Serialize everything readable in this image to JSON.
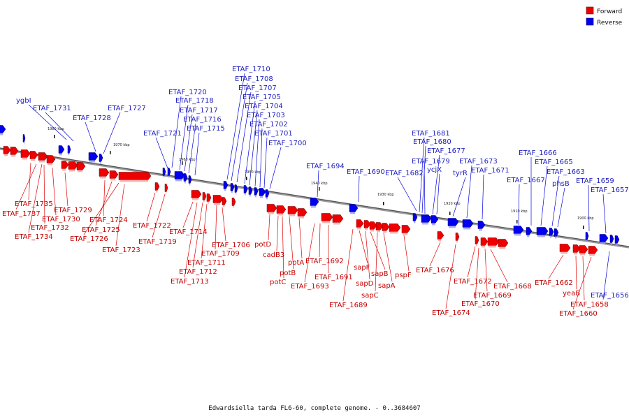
{
  "legend": {
    "forward_label": "Forward",
    "reverse_label": "Reverse",
    "forward_color": "#ee0000",
    "reverse_color": "#0000ee"
  },
  "caption": "Edwardsiella tarda FL6-60, complete genome. - 0..3684607",
  "ticks": [
    "1980 kbp",
    "1970 kbp",
    "1960 kbp",
    "1950 kbp",
    "1940 kbp",
    "1930 kbp",
    "1920 kbp",
    "1910 kbp",
    "1900 kbp"
  ],
  "reverse_genes": [
    "ygbI",
    "ETAF_1731",
    "ETAF_1728",
    "ETAF_1727",
    "ETAF_1721",
    "ETAF_1720",
    "ETAF_1718",
    "ETAF_1717",
    "ETAF_1716",
    "ETAF_1715",
    "ETAF_1710",
    "ETAF_1708",
    "ETAF_1707",
    "ETAF_1705",
    "ETAF_1704",
    "ETAF_1703",
    "ETAF_1702",
    "ETAF_1701",
    "ETAF_1700",
    "ETAF_1694",
    "ETAF_1690",
    "ETAF_1682",
    "ETAF_1681",
    "ETAF_1680",
    "ETAF_1679",
    "ETAF_1677",
    "ycjX",
    "tyrR",
    "ETAF_1673",
    "ETAF_1671",
    "ETAF_1667",
    "ETAF_1666",
    "ETAF_1665",
    "ETAF_1663",
    "phsB",
    "ETAF_1659",
    "ETAF_1657",
    "ETAF_1656"
  ],
  "forward_genes": [
    "ETAF_1735",
    "ETAF_1737",
    "ETAF_1730",
    "ETAF_1729",
    "ETAF_1732",
    "ETAF_1734",
    "ETAF_1724",
    "ETAF_1725",
    "ETAF_1726",
    "ETAF_1723",
    "ETAF_1722",
    "ETAF_1719",
    "ETAF_1714",
    "ETAF_1706",
    "ETAF_1709",
    "ETAF_1711",
    "ETAF_1712",
    "ETAF_1713",
    "potD",
    "cadB3",
    "potA",
    "potB",
    "potC",
    "ETAF_1692",
    "ETAF_1691",
    "ETAF_1693",
    "sapF",
    "sapB",
    "sapD",
    "sapA",
    "sapC",
    "ETAF_1689",
    "pspF",
    "ETAF_1676",
    "ETAF_1672",
    "ETAF_1668",
    "ETAF_1669",
    "ETAF_1670",
    "ETAF_1674",
    "ETAF_1662",
    "yeaB",
    "ETAF_1658",
    "ETAF_1660"
  ]
}
